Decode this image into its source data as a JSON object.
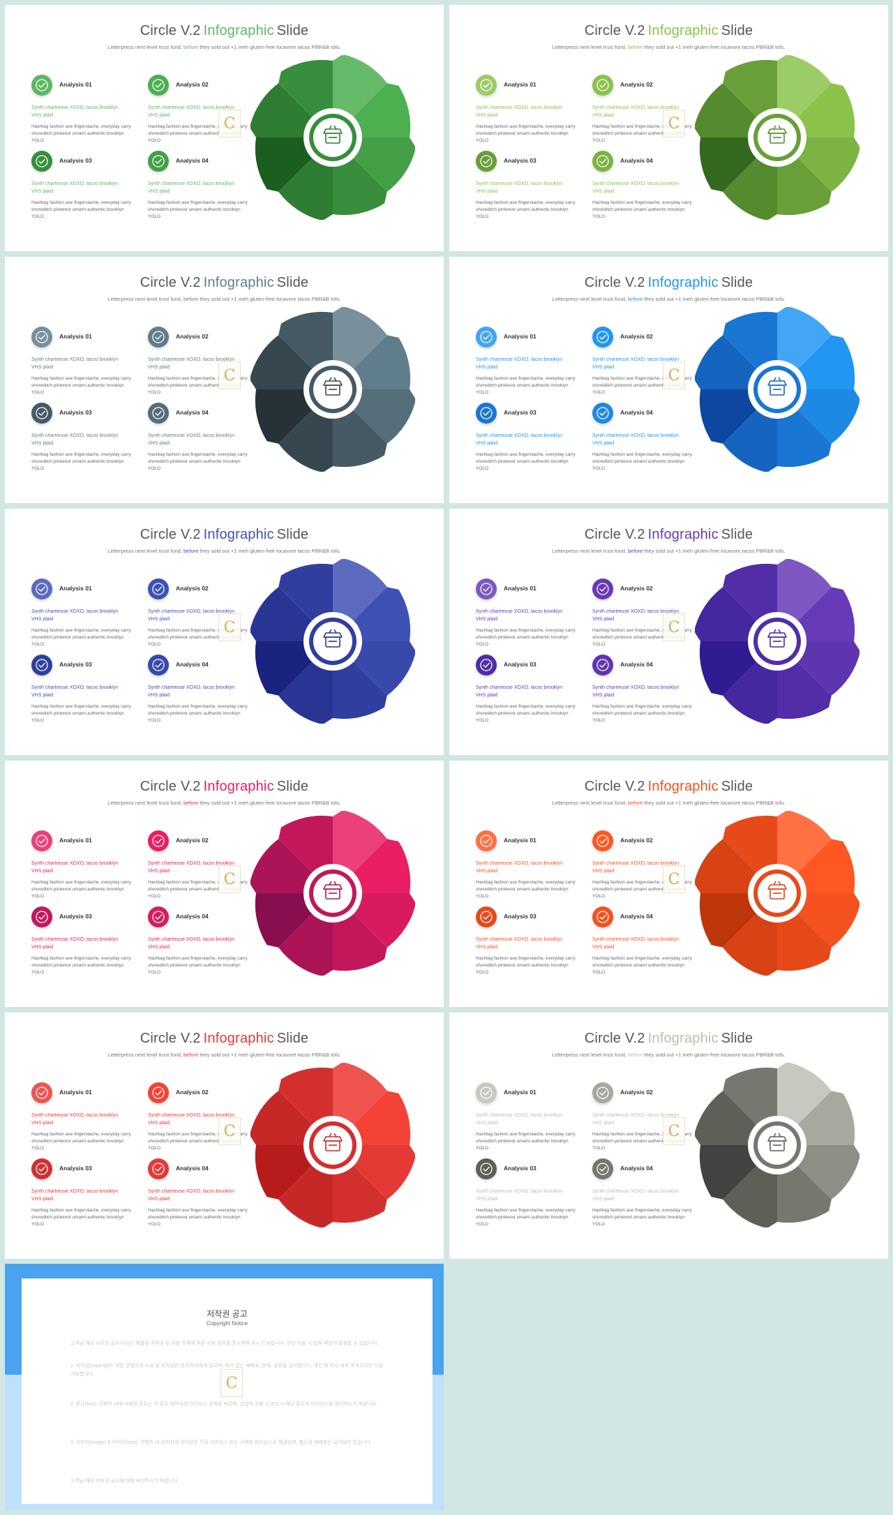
{
  "slide_common": {
    "title_prefix": "Circle V.2",
    "title_highlight": "Infographic",
    "title_suffix": "Slide",
    "subtitle_prefix": "Letterpress next level trust fund,",
    "subtitle_before": "before",
    "subtitle_suffix": "they sold out +1 meh gluten-free locavore tacos PBR&B tofu.",
    "items": [
      {
        "name": "Analysis 01",
        "accent": "Synth chartreuse XOXO, tacos brooklyn VHS plaid",
        "body": "Hashtag fashion axe fingerstache, everyday carry shoreditch pinterest umami authentic brooklyn YOLO"
      },
      {
        "name": "Analysis 02",
        "accent": "Synth chartreuse XOXO, tacos brooklyn VHS plaid",
        "body": "Hashtag fashion axe fingerstache, everyday carry shoreditch pinterest umami authentic brooklyn YOLO"
      },
      {
        "name": "Analysis 03",
        "accent": "Synth chartreuse XOXO, tacos brooklyn VHS plaid",
        "body": "Hashtag fashion axe fingerstache, everyday carry shoreditch pinterest umami authentic brooklyn YOLO"
      },
      {
        "name": "Analysis 04",
        "accent": "Synth chartreuse XOXO, tacos brooklyn VHS plaid",
        "body": "Hashtag fashion axe fingerstache, everyday carry shoreditch pinterest umami authentic brooklyn YOLO"
      }
    ],
    "icons": {
      "check": "check-icon",
      "center": "bag-icon",
      "watermark": "copyright-logo"
    },
    "watermark_letter": "C"
  },
  "themes": [
    {
      "name": "green",
      "accent": "#5cb860",
      "shades": [
        "#66bb6a",
        "#4caf50",
        "#43a047",
        "#388e3c",
        "#2e7d32",
        "#1b5e20",
        "#2e7d32",
        "#388e3c"
      ],
      "checks": [
        "#5cb860",
        "#4caf50",
        "#388e3c",
        "#43a047"
      ]
    },
    {
      "name": "lime",
      "accent": "#8bc34a",
      "shades": [
        "#9ccc65",
        "#8bc34a",
        "#7cb342",
        "#689f38",
        "#558b2f",
        "#33691e",
        "#558b2f",
        "#689f38"
      ],
      "checks": [
        "#9ccc65",
        "#8bc34a",
        "#689f38",
        "#7cb342"
      ]
    },
    {
      "name": "slate",
      "accent": "#607d8b",
      "shades": [
        "#78909c",
        "#607d8b",
        "#546e7a",
        "#455a64",
        "#37474f",
        "#263238",
        "#37474f",
        "#455a64"
      ],
      "checks": [
        "#78909c",
        "#607d8b",
        "#455a64",
        "#546e7a"
      ]
    },
    {
      "name": "blue",
      "accent": "#2196f3",
      "shades": [
        "#42a5f5",
        "#2196f3",
        "#1e88e5",
        "#1976d2",
        "#1565c0",
        "#0d47a1",
        "#1565c0",
        "#1976d2"
      ],
      "checks": [
        "#42a5f5",
        "#2196f3",
        "#1976d2",
        "#1e88e5"
      ]
    },
    {
      "name": "indigo",
      "accent": "#3f51b5",
      "shades": [
        "#5c6bc0",
        "#3f51b5",
        "#3949ab",
        "#303f9f",
        "#283593",
        "#1a237e",
        "#283593",
        "#303f9f"
      ],
      "checks": [
        "#5c6bc0",
        "#3f51b5",
        "#303f9f",
        "#3949ab"
      ]
    },
    {
      "name": "purple",
      "accent": "#673ab7",
      "shades": [
        "#7e57c2",
        "#673ab7",
        "#5e35b1",
        "#512da8",
        "#4527a0",
        "#311b92",
        "#4527a0",
        "#512da8"
      ],
      "checks": [
        "#7e57c2",
        "#673ab7",
        "#512da8",
        "#5e35b1"
      ]
    },
    {
      "name": "pink",
      "accent": "#e91e63",
      "shades": [
        "#ec407a",
        "#e91e63",
        "#d81b60",
        "#c2185b",
        "#ad1457",
        "#880e4f",
        "#ad1457",
        "#c2185b"
      ],
      "checks": [
        "#ec407a",
        "#e91e63",
        "#c2185b",
        "#d81b60"
      ]
    },
    {
      "name": "orange",
      "accent": "#f4511e",
      "shades": [
        "#ff7043",
        "#ff5722",
        "#f4511e",
        "#e64a19",
        "#d84315",
        "#bf360c",
        "#d84315",
        "#e64a19"
      ],
      "checks": [
        "#ff7043",
        "#ff5722",
        "#e64a19",
        "#f4511e"
      ]
    },
    {
      "name": "red",
      "accent": "#e53935",
      "shades": [
        "#ef5350",
        "#f44336",
        "#e53935",
        "#d32f2f",
        "#c62828",
        "#b71c1c",
        "#c62828",
        "#d32f2f"
      ],
      "checks": [
        "#ef5350",
        "#f44336",
        "#d32f2f",
        "#e53935"
      ]
    },
    {
      "name": "grey",
      "accent": "#bdbdb0",
      "shades": [
        "#c8c8c0",
        "#a8a89e",
        "#8e8e86",
        "#77776f",
        "#5f5f58",
        "#424240",
        "#5f5f58",
        "#77776f"
      ],
      "checks": [
        "#c8c8c0",
        "#a8a89e",
        "#5f5f58",
        "#77776f"
      ]
    }
  ],
  "notice": {
    "title": "저작권 공고",
    "subtitle": "Copyright Notice",
    "paragraphs": [
      "고객님 해당 사무의 출처 디자인 템플릿 저작권 및 이용 목적에 따른 사용 범위를 준수하여 주시기 바랍니다. 무단 이용 시 법적 책임이 발생할 수 있습니다.",
      "1. 저작권(copyright): 모든 콘텐츠의 소유 및 저작권은 원저작자에게 있으며, 허가 없는 재배포, 판매, 공유를 금지합니다. 개인 및 회사 내부 목적으로만 사용 가능합니다.",
      "2. 폰트(font): 콘텐츠 내에 사용된 폰트는 각 폰트 제작사의 라이선스 정책을 따르며, 상업적 사용 시 반드시 해당 폰트의 라이선스를 확인하시기 바랍니다.",
      "3. 이미지(image) & 아이콘(icon): 콘텐츠 내 이미지와 아이콘은 무료 라이선스 또는 구매한 라이선스로 제공되며, 별도의 재배포는 금지되어 있습니다.",
      "고객님 해당 저작권 공고에 대해 숙지하시기 바랍니다."
    ]
  }
}
